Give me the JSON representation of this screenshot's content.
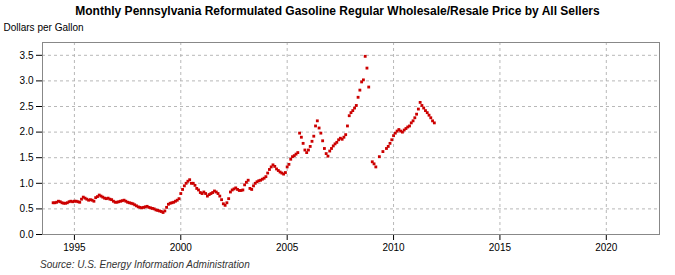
{
  "chart_data": {
    "type": "scatter",
    "title": "Monthly Pennsylvania Reformulated Gasoline Regular Wholesale/Resale Price by All Sellers",
    "ylabel": "Dollars per Gallon",
    "source": "Source: U.S. Energy Information Administration",
    "color": "#cc0000",
    "marker": "square",
    "grid": true,
    "xlim": [
      1993.5,
      2022.5
    ],
    "ylim": [
      0.0,
      3.75
    ],
    "xticks": [
      1995,
      2000,
      2005,
      2010,
      2015,
      2020
    ],
    "yticks": [
      {
        "value": 0.0,
        "label": "0.0"
      },
      0.5,
      {
        "value": 1.0,
        "label": "1.0"
      },
      1.5,
      {
        "value": 2.0,
        "label": "2.0"
      },
      2.5,
      {
        "value": 3.0,
        "label": "3.0"
      },
      3.5
    ],
    "x": [
      1994.0,
      1994.083,
      1994.167,
      1994.25,
      1994.333,
      1994.417,
      1994.5,
      1994.583,
      1994.667,
      1994.75,
      1994.833,
      1994.917,
      1995.0,
      1995.083,
      1995.167,
      1995.25,
      1995.333,
      1995.417,
      1995.5,
      1995.583,
      1995.667,
      1995.75,
      1995.833,
      1995.917,
      1996.0,
      1996.083,
      1996.167,
      1996.25,
      1996.333,
      1996.417,
      1996.5,
      1996.583,
      1996.667,
      1996.75,
      1996.833,
      1996.917,
      1997.0,
      1997.083,
      1997.167,
      1997.25,
      1997.333,
      1997.417,
      1997.5,
      1997.583,
      1997.667,
      1997.75,
      1997.833,
      1997.917,
      1998.0,
      1998.083,
      1998.167,
      1998.25,
      1998.333,
      1998.417,
      1998.5,
      1998.583,
      1998.667,
      1998.75,
      1998.833,
      1998.917,
      1999.0,
      1999.083,
      1999.167,
      1999.25,
      1999.333,
      1999.417,
      1999.5,
      1999.583,
      1999.667,
      1999.75,
      1999.833,
      1999.917,
      2000.0,
      2000.083,
      2000.167,
      2000.25,
      2000.333,
      2000.417,
      2000.5,
      2000.583,
      2000.667,
      2000.75,
      2000.833,
      2000.917,
      2001.0,
      2001.083,
      2001.167,
      2001.25,
      2001.333,
      2001.417,
      2001.5,
      2001.583,
      2001.667,
      2001.75,
      2001.833,
      2001.917,
      2002.0,
      2002.083,
      2002.167,
      2002.25,
      2002.333,
      2002.417,
      2002.5,
      2002.583,
      2002.667,
      2002.75,
      2002.833,
      2002.917,
      2003.0,
      2003.083,
      2003.167,
      2003.25,
      2003.333,
      2003.417,
      2003.5,
      2003.583,
      2003.667,
      2003.75,
      2003.833,
      2003.917,
      2004.0,
      2004.083,
      2004.167,
      2004.25,
      2004.333,
      2004.417,
      2004.5,
      2004.583,
      2004.667,
      2004.75,
      2004.833,
      2004.917,
      2005.0,
      2005.083,
      2005.167,
      2005.25,
      2005.333,
      2005.417,
      2005.5,
      2005.583,
      2005.667,
      2005.75,
      2005.833,
      2005.917,
      2006.0,
      2006.083,
      2006.167,
      2006.25,
      2006.333,
      2006.417,
      2006.5,
      2006.583,
      2006.667,
      2006.75,
      2006.833,
      2006.917,
      2007.0,
      2007.083,
      2007.167,
      2007.25,
      2007.333,
      2007.417,
      2007.5,
      2007.583,
      2007.667,
      2007.75,
      2007.833,
      2007.917,
      2008.0,
      2008.083,
      2008.167,
      2008.25,
      2008.333,
      2008.417,
      2008.5,
      2008.583,
      2008.667,
      2008.75,
      2008.833,
      2009.0,
      2009.083,
      2009.167,
      2009.333,
      2009.5,
      2009.667,
      2009.75,
      2009.833,
      2009.917,
      2010.0,
      2010.083,
      2010.167,
      2010.25,
      2010.333,
      2010.417,
      2010.5,
      2010.583,
      2010.667,
      2010.75,
      2010.833,
      2010.917,
      2011.0,
      2011.083,
      2011.167,
      2011.25,
      2011.333,
      2011.417,
      2011.5,
      2011.583,
      2011.667,
      2011.75,
      2011.833,
      2011.917
    ],
    "values": [
      0.62,
      0.62,
      0.63,
      0.65,
      0.64,
      0.62,
      0.61,
      0.61,
      0.62,
      0.64,
      0.65,
      0.64,
      0.65,
      0.65,
      0.64,
      0.63,
      0.69,
      0.73,
      0.71,
      0.69,
      0.67,
      0.68,
      0.67,
      0.65,
      0.72,
      0.74,
      0.77,
      0.75,
      0.73,
      0.71,
      0.7,
      0.71,
      0.69,
      0.68,
      0.65,
      0.63,
      0.63,
      0.64,
      0.65,
      0.66,
      0.67,
      0.65,
      0.63,
      0.62,
      0.61,
      0.6,
      0.58,
      0.56,
      0.54,
      0.53,
      0.52,
      0.53,
      0.54,
      0.55,
      0.53,
      0.52,
      0.51,
      0.5,
      0.48,
      0.47,
      0.46,
      0.45,
      0.43,
      0.46,
      0.53,
      0.59,
      0.61,
      0.62,
      0.63,
      0.65,
      0.67,
      0.7,
      0.8,
      0.88,
      0.95,
      1.0,
      1.04,
      1.07,
      1.0,
      1.0,
      0.96,
      0.9,
      0.87,
      0.82,
      0.8,
      0.83,
      0.8,
      0.75,
      0.78,
      0.8,
      0.82,
      0.85,
      0.83,
      0.8,
      0.75,
      0.68,
      0.6,
      0.57,
      0.62,
      0.7,
      0.83,
      0.87,
      0.89,
      0.91,
      0.88,
      0.86,
      0.86,
      0.87,
      0.97,
      1.02,
      1.06,
      0.9,
      0.88,
      0.95,
      1.0,
      1.03,
      1.05,
      1.06,
      1.08,
      1.1,
      1.13,
      1.2,
      1.27,
      1.32,
      1.36,
      1.33,
      1.28,
      1.25,
      1.22,
      1.2,
      1.18,
      1.21,
      1.32,
      1.37,
      1.47,
      1.52,
      1.54,
      1.57,
      1.6,
      1.98,
      1.9,
      1.78,
      1.65,
      1.6,
      1.65,
      1.72,
      1.82,
      1.92,
      2.12,
      2.22,
      2.08,
      1.98,
      1.83,
      1.68,
      1.58,
      1.53,
      1.63,
      1.68,
      1.73,
      1.77,
      1.8,
      1.85,
      1.88,
      1.86,
      1.9,
      1.95,
      2.12,
      2.32,
      2.38,
      2.42,
      2.47,
      2.52,
      2.68,
      2.82,
      2.98,
      3.02,
      3.48,
      3.25,
      2.88,
      1.42,
      1.38,
      1.32,
      1.52,
      1.62,
      1.68,
      1.72,
      1.78,
      1.85,
      1.93,
      1.98,
      2.02,
      2.05,
      2.02,
      2.0,
      2.04,
      2.07,
      2.1,
      2.12,
      2.18,
      2.22,
      2.28,
      2.35,
      2.45,
      2.58,
      2.52,
      2.47,
      2.42,
      2.38,
      2.33,
      2.28,
      2.22,
      2.18
    ]
  }
}
